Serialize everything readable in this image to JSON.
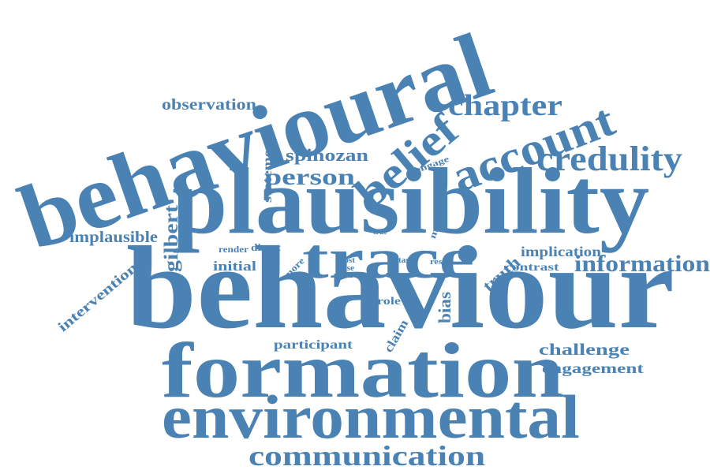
{
  "color": "#4a82b4",
  "words": [
    {
      "id": "behavioural",
      "text": "behavioural"
    },
    {
      "id": "plausibility",
      "text": "plausibility"
    },
    {
      "id": "behaviour",
      "text": "behaviour"
    },
    {
      "id": "formation",
      "text": "formation"
    },
    {
      "id": "environmental",
      "text": "environmental"
    },
    {
      "id": "communication",
      "text": "communication"
    },
    {
      "id": "trace",
      "text": "trace"
    },
    {
      "id": "account",
      "text": "account"
    },
    {
      "id": "belief",
      "text": "belief"
    },
    {
      "id": "chapter",
      "text": "chapter"
    },
    {
      "id": "credulity",
      "text": "credulity"
    },
    {
      "id": "information",
      "text": "information"
    },
    {
      "id": "person",
      "text": "person"
    },
    {
      "id": "spinozan",
      "text": "spinozan"
    },
    {
      "id": "observation",
      "text": "observation"
    },
    {
      "id": "implausible",
      "text": "implausible"
    },
    {
      "id": "gilbert",
      "text": "gilbert"
    },
    {
      "id": "intervention",
      "text": "intervention"
    },
    {
      "id": "statement",
      "text": "statement"
    },
    {
      "id": "truth",
      "text": "truth"
    },
    {
      "id": "implication",
      "text": "implication"
    },
    {
      "id": "contrast",
      "text": "contrast"
    },
    {
      "id": "challenge",
      "text": "challenge"
    },
    {
      "id": "engagement",
      "text": "engagement"
    },
    {
      "id": "participant",
      "text": "participant"
    },
    {
      "id": "bias",
      "text": "bias"
    },
    {
      "id": "claim",
      "text": "claim"
    },
    {
      "id": "role",
      "text": "role"
    },
    {
      "id": "initial",
      "text": "initial"
    },
    {
      "id": "render",
      "text": "render"
    },
    {
      "id": "direct",
      "text": "direct"
    },
    {
      "id": "more",
      "text": "more"
    },
    {
      "id": "most",
      "text": "most"
    },
    {
      "id": "false",
      "text": "false"
    },
    {
      "id": "task",
      "text": "task"
    },
    {
      "id": "result",
      "text": "result"
    },
    {
      "id": "true",
      "text": "true"
    },
    {
      "id": "matter",
      "text": "matter"
    },
    {
      "id": "engage",
      "text": "engage"
    }
  ]
}
